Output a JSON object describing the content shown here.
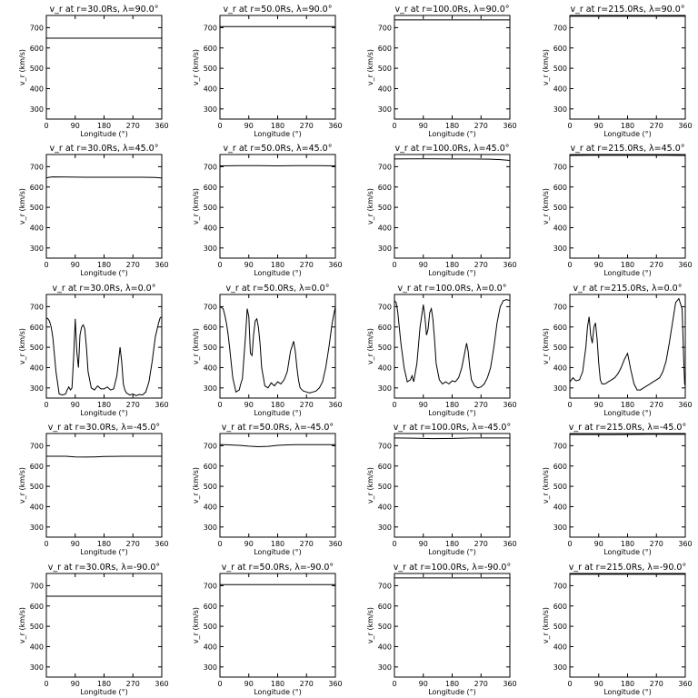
{
  "chart_data": [
    {
      "type": "line",
      "title": "v_r at r=30.0Rs, λ=90.0°",
      "xlabel": "Longitude (°)",
      "ylabel": "v_r (km/s)",
      "xlim": [
        0,
        360
      ],
      "ylim": [
        250,
        760
      ],
      "xticks": [
        0,
        90,
        180,
        270,
        360
      ],
      "yticks": [
        300,
        400,
        500,
        600,
        700
      ],
      "series": [
        {
          "x": [
            0,
            360
          ],
          "y": [
            648,
            648
          ]
        }
      ]
    },
    {
      "type": "line",
      "title": "v_r at r=50.0Rs, λ=90.0°",
      "xlabel": "Longitude (°)",
      "ylabel": "v_r (km/s)",
      "xlim": [
        0,
        360
      ],
      "ylim": [
        250,
        760
      ],
      "xticks": [
        0,
        90,
        180,
        270,
        360
      ],
      "yticks": [
        300,
        400,
        500,
        600,
        700
      ],
      "series": [
        {
          "x": [
            0,
            360
          ],
          "y": [
            705,
            705
          ]
        }
      ]
    },
    {
      "type": "line",
      "title": "v_r at r=100.0Rs, λ=90.0°",
      "xlabel": "Longitude (°)",
      "ylabel": "v_r (km/s)",
      "xlim": [
        0,
        360
      ],
      "ylim": [
        250,
        760
      ],
      "xticks": [
        0,
        90,
        180,
        270,
        360
      ],
      "yticks": [
        300,
        400,
        500,
        600,
        700
      ],
      "series": [
        {
          "x": [
            0,
            360
          ],
          "y": [
            738,
            738
          ]
        }
      ]
    },
    {
      "type": "line",
      "title": "v_r at r=215.0Rs, λ=90.0°",
      "xlabel": "Longitude (°)",
      "ylabel": "v_r (km/s)",
      "xlim": [
        0,
        360
      ],
      "ylim": [
        250,
        760
      ],
      "xticks": [
        0,
        90,
        180,
        270,
        360
      ],
      "yticks": [
        300,
        400,
        500,
        600,
        700
      ],
      "series": [
        {
          "x": [
            0,
            360
          ],
          "y": [
            756,
            756
          ]
        }
      ]
    },
    {
      "type": "line",
      "title": "v_r at r=30.0Rs, λ=45.0°",
      "xlabel": "Longitude (°)",
      "ylabel": "v_r (km/s)",
      "xlim": [
        0,
        360
      ],
      "ylim": [
        250,
        760
      ],
      "xticks": [
        0,
        90,
        180,
        270,
        360
      ],
      "yticks": [
        300,
        400,
        500,
        600,
        700
      ],
      "series": [
        {
          "x": [
            0,
            10,
            20,
            60,
            120,
            180,
            240,
            300,
            340,
            360
          ],
          "y": [
            645,
            648,
            650,
            649,
            648,
            648,
            648,
            648,
            647,
            644
          ]
        }
      ]
    },
    {
      "type": "line",
      "title": "v_r at r=50.0Rs, λ=45.0°",
      "xlabel": "Longitude (°)",
      "ylabel": "v_r (km/s)",
      "xlim": [
        0,
        360
      ],
      "ylim": [
        250,
        760
      ],
      "xticks": [
        0,
        90,
        180,
        270,
        360
      ],
      "yticks": [
        300,
        400,
        500,
        600,
        700
      ],
      "series": [
        {
          "x": [
            0,
            60,
            120,
            180,
            240,
            300,
            360
          ],
          "y": [
            704,
            705,
            705,
            704,
            705,
            705,
            704
          ]
        }
      ]
    },
    {
      "type": "line",
      "title": "v_r at r=100.0Rs, λ=45.0°",
      "xlabel": "Longitude (°)",
      "ylabel": "v_r (km/s)",
      "xlim": [
        0,
        360
      ],
      "ylim": [
        250,
        760
      ],
      "xticks": [
        0,
        90,
        180,
        270,
        360
      ],
      "yticks": [
        300,
        400,
        500,
        600,
        700
      ],
      "series": [
        {
          "x": [
            0,
            60,
            120,
            180,
            240,
            300,
            330,
            360
          ],
          "y": [
            738,
            739,
            739,
            738,
            738,
            737,
            735,
            731
          ]
        }
      ]
    },
    {
      "type": "line",
      "title": "v_r at r=215.0Rs, λ=45.0°",
      "xlabel": "Longitude (°)",
      "ylabel": "v_r (km/s)",
      "xlim": [
        0,
        360
      ],
      "ylim": [
        250,
        760
      ],
      "xticks": [
        0,
        90,
        180,
        270,
        360
      ],
      "yticks": [
        300,
        400,
        500,
        600,
        700
      ],
      "series": [
        {
          "x": [
            0,
            60,
            120,
            180,
            240,
            300,
            360
          ],
          "y": [
            755,
            756,
            756,
            756,
            756,
            756,
            755
          ]
        }
      ]
    },
    {
      "type": "line",
      "title": "v_r at r=30.0Rs, λ=0.0°",
      "xlabel": "Longitude (°)",
      "ylabel": "v_r (km/s)",
      "xlim": [
        0,
        360
      ],
      "ylim": [
        250,
        760
      ],
      "xticks": [
        0,
        90,
        180,
        270,
        360
      ],
      "yticks": [
        300,
        400,
        500,
        600,
        700
      ],
      "series": [
        {
          "x": [
            0,
            5,
            10,
            15,
            20,
            30,
            40,
            50,
            60,
            65,
            70,
            75,
            80,
            85,
            90,
            95,
            100,
            105,
            110,
            115,
            120,
            125,
            130,
            140,
            150,
            160,
            170,
            180,
            190,
            200,
            210,
            220,
            225,
            230,
            235,
            240,
            245,
            250,
            260,
            270,
            280,
            290,
            300,
            310,
            320,
            330,
            340,
            350,
            355,
            360
          ],
          "y": [
            645,
            640,
            628,
            600,
            550,
            380,
            270,
            265,
            270,
            290,
            305,
            290,
            300,
            450,
            640,
            480,
            400,
            560,
            600,
            610,
            590,
            500,
            380,
            300,
            290,
            310,
            295,
            295,
            305,
            290,
            295,
            360,
            430,
            500,
            430,
            320,
            290,
            275,
            265,
            270,
            262,
            268,
            265,
            280,
            330,
            430,
            550,
            620,
            645,
            650
          ]
        }
      ]
    },
    {
      "type": "line",
      "title": "v_r at r=50.0Rs, λ=0.0°",
      "xlabel": "Longitude (°)",
      "ylabel": "v_r (km/s)",
      "xlim": [
        0,
        360
      ],
      "ylim": [
        250,
        760
      ],
      "xticks": [
        0,
        90,
        180,
        270,
        360
      ],
      "yticks": [
        300,
        400,
        500,
        600,
        700
      ],
      "series": [
        {
          "x": [
            0,
            5,
            10,
            15,
            20,
            25,
            30,
            40,
            50,
            60,
            65,
            70,
            80,
            85,
            90,
            95,
            100,
            105,
            110,
            115,
            120,
            125,
            130,
            140,
            150,
            160,
            170,
            180,
            190,
            200,
            210,
            220,
            230,
            235,
            240,
            245,
            250,
            260,
            270,
            280,
            290,
            300,
            310,
            320,
            330,
            340,
            350,
            360
          ],
          "y": [
            700,
            695,
            690,
            660,
            620,
            570,
            500,
            350,
            280,
            290,
            320,
            345,
            560,
            690,
            650,
            470,
            460,
            560,
            630,
            640,
            600,
            520,
            400,
            310,
            300,
            325,
            310,
            330,
            320,
            340,
            380,
            480,
            530,
            480,
            400,
            340,
            300,
            285,
            280,
            275,
            280,
            285,
            300,
            330,
            400,
            500,
            620,
            700
          ]
        }
      ]
    },
    {
      "type": "line",
      "title": "v_r at r=100.0Rs, λ=0.0°",
      "xlabel": "Longitude (°)",
      "ylabel": "v_r (km/s)",
      "xlim": [
        0,
        360
      ],
      "ylim": [
        250,
        760
      ],
      "xticks": [
        0,
        90,
        180,
        270,
        360
      ],
      "yticks": [
        300,
        400,
        500,
        600,
        700
      ],
      "series": [
        {
          "x": [
            0,
            5,
            10,
            15,
            20,
            30,
            40,
            50,
            55,
            60,
            70,
            80,
            90,
            95,
            100,
            105,
            110,
            115,
            120,
            125,
            130,
            140,
            150,
            160,
            170,
            180,
            190,
            200,
            210,
            220,
            225,
            230,
            235,
            240,
            250,
            260,
            270,
            280,
            290,
            300,
            310,
            320,
            330,
            340,
            350,
            360
          ],
          "y": [
            730,
            720,
            680,
            600,
            520,
            400,
            330,
            340,
            360,
            330,
            420,
            600,
            710,
            650,
            560,
            590,
            670,
            690,
            640,
            540,
            420,
            340,
            320,
            330,
            320,
            335,
            330,
            350,
            400,
            480,
            520,
            480,
            400,
            340,
            310,
            300,
            305,
            320,
            350,
            400,
            500,
            620,
            700,
            730,
            735,
            730
          ]
        }
      ]
    },
    {
      "type": "line",
      "title": "v_r at r=215.0Rs, λ=0.0°",
      "xlabel": "Longitude (°)",
      "ylabel": "v_r (km/s)",
      "xlim": [
        0,
        360
      ],
      "ylim": [
        250,
        760
      ],
      "xticks": [
        0,
        90,
        180,
        270,
        360
      ],
      "yticks": [
        300,
        400,
        500,
        600,
        700
      ],
      "series": [
        {
          "x": [
            0,
            5,
            10,
            15,
            20,
            30,
            40,
            50,
            55,
            60,
            65,
            70,
            75,
            80,
            85,
            90,
            95,
            100,
            110,
            120,
            130,
            140,
            150,
            160,
            170,
            180,
            185,
            190,
            200,
            210,
            220,
            230,
            240,
            250,
            260,
            270,
            280,
            290,
            300,
            310,
            320,
            330,
            340,
            350,
            355,
            358,
            360
          ],
          "y": [
            330,
            340,
            350,
            340,
            335,
            340,
            380,
            500,
            600,
            650,
            560,
            520,
            600,
            620,
            540,
            420,
            340,
            320,
            320,
            330,
            340,
            350,
            370,
            400,
            440,
            470,
            430,
            390,
            320,
            290,
            290,
            300,
            310,
            320,
            330,
            340,
            350,
            380,
            430,
            520,
            620,
            720,
            740,
            690,
            450,
            320,
            310
          ]
        }
      ]
    },
    {
      "type": "line",
      "title": "v_r at r=30.0Rs, λ=-45.0°",
      "xlabel": "Longitude (°)",
      "ylabel": "v_r (km/s)",
      "xlim": [
        0,
        360
      ],
      "ylim": [
        250,
        760
      ],
      "xticks": [
        0,
        90,
        180,
        270,
        360
      ],
      "yticks": [
        300,
        400,
        500,
        600,
        700
      ],
      "series": [
        {
          "x": [
            0,
            60,
            90,
            120,
            150,
            180,
            240,
            300,
            360
          ],
          "y": [
            648,
            648,
            645,
            644,
            645,
            647,
            648,
            648,
            648
          ]
        }
      ]
    },
    {
      "type": "line",
      "title": "v_r at r=50.0Rs, λ=-45.0°",
      "xlabel": "Longitude (°)",
      "ylabel": "v_r (km/s)",
      "xlim": [
        0,
        360
      ],
      "ylim": [
        250,
        760
      ],
      "xticks": [
        0,
        90,
        180,
        270,
        360
      ],
      "yticks": [
        300,
        400,
        500,
        600,
        700
      ],
      "series": [
        {
          "x": [
            0,
            30,
            60,
            90,
            120,
            150,
            180,
            210,
            240,
            300,
            360
          ],
          "y": [
            706,
            704,
            702,
            698,
            695,
            697,
            702,
            704,
            705,
            705,
            705
          ]
        }
      ]
    },
    {
      "type": "line",
      "title": "v_r at r=100.0Rs, λ=-45.0°",
      "xlabel": "Longitude (°)",
      "ylabel": "v_r (km/s)",
      "xlim": [
        0,
        360
      ],
      "ylim": [
        250,
        760
      ],
      "xticks": [
        0,
        90,
        180,
        270,
        360
      ],
      "yticks": [
        300,
        400,
        500,
        600,
        700
      ],
      "series": [
        {
          "x": [
            0,
            60,
            120,
            180,
            240,
            300,
            360
          ],
          "y": [
            738,
            737,
            735,
            736,
            738,
            738,
            738
          ]
        }
      ]
    },
    {
      "type": "line",
      "title": "v_r at r=215.0Rs, λ=-45.0°",
      "xlabel": "Longitude (°)",
      "ylabel": "v_r (km/s)",
      "xlim": [
        0,
        360
      ],
      "ylim": [
        250,
        760
      ],
      "xticks": [
        0,
        90,
        180,
        270,
        360
      ],
      "yticks": [
        300,
        400,
        500,
        600,
        700
      ],
      "series": [
        {
          "x": [
            0,
            60,
            120,
            180,
            240,
            300,
            360
          ],
          "y": [
            755,
            755,
            754,
            755,
            756,
            756,
            756
          ]
        }
      ]
    },
    {
      "type": "line",
      "title": "v_r at r=30.0Rs, λ=-90.0°",
      "xlabel": "Longitude (°)",
      "ylabel": "v_r (km/s)",
      "xlim": [
        0,
        360
      ],
      "ylim": [
        250,
        760
      ],
      "xticks": [
        0,
        90,
        180,
        270,
        360
      ],
      "yticks": [
        300,
        400,
        500,
        600,
        700
      ],
      "series": [
        {
          "x": [
            0,
            360
          ],
          "y": [
            648,
            648
          ]
        }
      ]
    },
    {
      "type": "line",
      "title": "v_r at r=50.0Rs, λ=-90.0°",
      "xlabel": "Longitude (°)",
      "ylabel": "v_r (km/s)",
      "xlim": [
        0,
        360
      ],
      "ylim": [
        250,
        760
      ],
      "xticks": [
        0,
        90,
        180,
        270,
        360
      ],
      "yticks": [
        300,
        400,
        500,
        600,
        700
      ],
      "series": [
        {
          "x": [
            0,
            360
          ],
          "y": [
            705,
            705
          ]
        }
      ]
    },
    {
      "type": "line",
      "title": "v_r at r=100.0Rs, λ=-90.0°",
      "xlabel": "Longitude (°)",
      "ylabel": "v_r (km/s)",
      "xlim": [
        0,
        360
      ],
      "ylim": [
        250,
        760
      ],
      "xticks": [
        0,
        90,
        180,
        270,
        360
      ],
      "yticks": [
        300,
        400,
        500,
        600,
        700
      ],
      "series": [
        {
          "x": [
            0,
            360
          ],
          "y": [
            738,
            738
          ]
        }
      ]
    },
    {
      "type": "line",
      "title": "v_r at r=215.0Rs, λ=-90.0°",
      "xlabel": "Longitude (°)",
      "ylabel": "v_r (km/s)",
      "xlim": [
        0,
        360
      ],
      "ylim": [
        250,
        760
      ],
      "xticks": [
        0,
        90,
        180,
        270,
        360
      ],
      "yticks": [
        300,
        400,
        500,
        600,
        700
      ],
      "series": [
        {
          "x": [
            0,
            360
          ],
          "y": [
            756,
            756
          ]
        }
      ]
    }
  ]
}
